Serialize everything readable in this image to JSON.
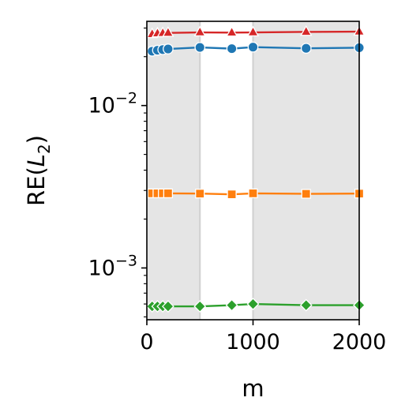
{
  "chart_data": {
    "type": "line",
    "xlabel": "m",
    "ylabel": "RE($L_2$)",
    "ylabel_text": {
      "prefix": "RE(",
      "var": "L",
      "sub": "2",
      "suffix": ")"
    },
    "xlim": [
      0,
      2000
    ],
    "ylim": [
      0.00048,
      0.033
    ],
    "yscale": "log",
    "x_ticks": [
      {
        "value": 0,
        "label": "0"
      },
      {
        "value": 1000,
        "label": "1000"
      },
      {
        "value": 2000,
        "label": "2000"
      }
    ],
    "y_ticks": [
      {
        "value": 0.001,
        "base": "10",
        "exp": "−3"
      },
      {
        "value": 0.01,
        "base": "10",
        "exp": "−2"
      }
    ],
    "shaded_regions": [
      {
        "from": 0,
        "to": 500,
        "color": "#e5e5e5"
      },
      {
        "from": 1000,
        "to": 2000,
        "color": "#e5e5e5"
      }
    ],
    "vertical_lines": [
      500,
      1000
    ],
    "grid": false,
    "legend": "none",
    "series": [
      {
        "color": "#d62728",
        "marker": "triangle",
        "x": [
          50,
          100,
          150,
          200,
          500,
          800,
          1000,
          1500,
          2000
        ],
        "y": [
          0.0275,
          0.0278,
          0.0279,
          0.028,
          0.0282,
          0.0281,
          0.0282,
          0.0284,
          0.0285
        ]
      },
      {
        "color": "#1f77b4",
        "marker": "circle",
        "x": [
          50,
          100,
          150,
          200,
          500,
          800,
          1000,
          1500,
          2000
        ],
        "y": [
          0.0216,
          0.0219,
          0.0221,
          0.0223,
          0.0228,
          0.0224,
          0.0229,
          0.0225,
          0.0227
        ]
      },
      {
        "color": "#ff7f0e",
        "marker": "square",
        "x": [
          50,
          100,
          150,
          200,
          500,
          800,
          1000,
          1500,
          2000
        ],
        "y": [
          0.00288,
          0.00288,
          0.00288,
          0.00288,
          0.00287,
          0.00284,
          0.00288,
          0.00286,
          0.00287
        ]
      },
      {
        "color": "#2ca02c",
        "marker": "diamond",
        "x": [
          50,
          100,
          150,
          200,
          500,
          800,
          1000,
          1500,
          2000
        ],
        "y": [
          0.00058,
          0.00058,
          0.00058,
          0.00058,
          0.00058,
          0.00059,
          0.0006,
          0.00059,
          0.00059
        ]
      }
    ]
  }
}
